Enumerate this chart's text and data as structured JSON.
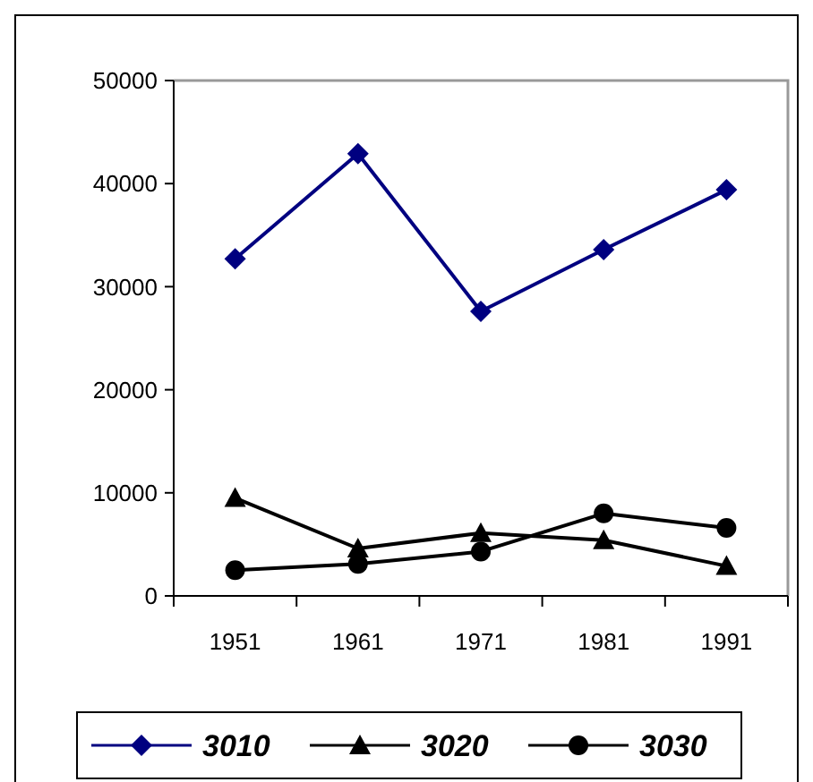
{
  "chart_data": {
    "type": "line",
    "categories": [
      "1951",
      "1961",
      "1971",
      "1981",
      "1991"
    ],
    "series": [
      {
        "name": "3010",
        "color": "#000080",
        "marker": "diamond",
        "values": [
          32700,
          42900,
          27600,
          33600,
          39400
        ]
      },
      {
        "name": "3020",
        "color": "#000000",
        "marker": "triangle",
        "values": [
          9500,
          4600,
          6100,
          5400,
          2900
        ]
      },
      {
        "name": "3030",
        "color": "#000000",
        "marker": "circle",
        "values": [
          2500,
          3100,
          4300,
          8000,
          6600
        ]
      }
    ],
    "ylim": [
      0,
      50000
    ],
    "yticks": [
      0,
      10000,
      20000,
      30000,
      40000,
      50000
    ],
    "grid": false,
    "legend": "bottom",
    "line_style": "solid"
  }
}
